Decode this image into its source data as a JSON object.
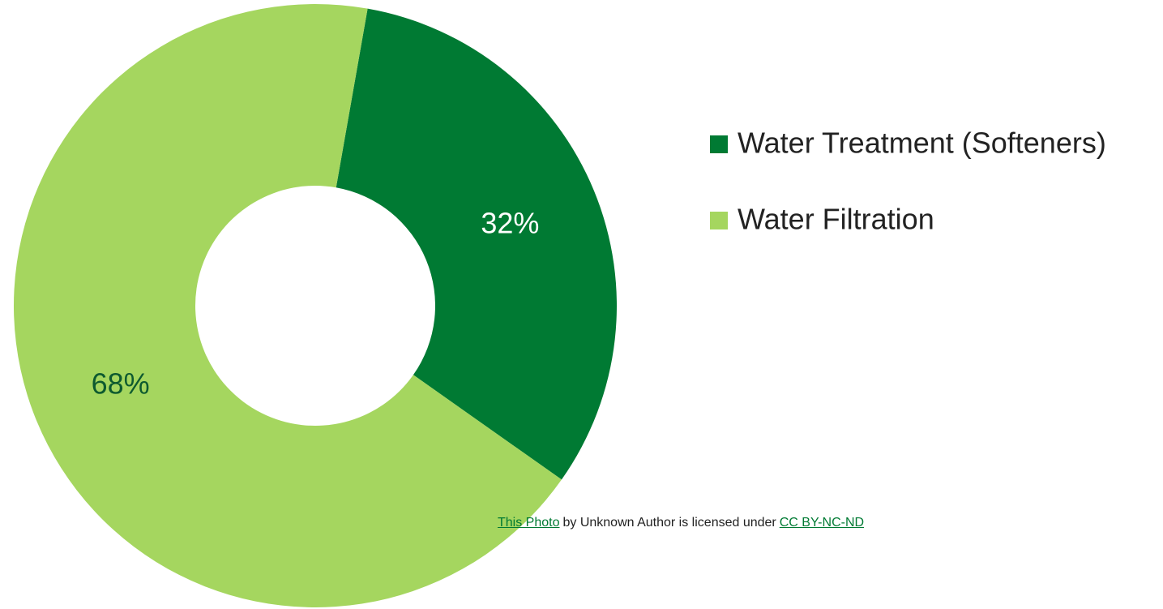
{
  "chart_data": {
    "type": "donut",
    "categories": [
      "Water Treatment (Softeners)",
      "Water Filtration"
    ],
    "values": [
      32,
      68
    ],
    "value_labels": [
      "32%",
      "68%"
    ],
    "colors": [
      "#007a33",
      "#a5d65f"
    ],
    "label_colors": [
      "#ffffff",
      "#0d5a2f"
    ],
    "legend": "right"
  },
  "attribution": {
    "link_text": "This Photo",
    "middle": "by Unknown Author is licensed under",
    "license": "CC BY-NC-ND"
  }
}
